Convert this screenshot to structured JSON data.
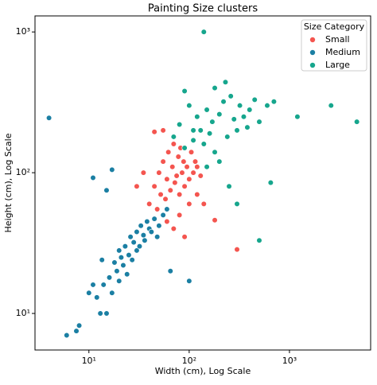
{
  "chart_data": {
    "type": "scatter",
    "title": "Painting Size clusters",
    "x_label": "Width (cm), Log Scale",
    "y_label": "Height (cm), Log Scale",
    "x_scale": "log",
    "y_scale": "log",
    "xlim": [
      2.9,
      6450
    ],
    "ylim": [
      5.5,
      1300
    ],
    "xticks": [
      {
        "value": 10,
        "label": "10¹"
      },
      {
        "value": 100,
        "label": "10²"
      },
      {
        "value": 1000,
        "label": "10³"
      }
    ],
    "yticks": [
      {
        "value": 10,
        "label": "10¹"
      },
      {
        "value": 100,
        "label": "10²"
      },
      {
        "value": 1000,
        "label": "10³"
      }
    ],
    "legend_title": "Size Category",
    "legend_position": "upper right",
    "series": [
      {
        "name": "Small",
        "color": "#f4554f",
        "x": [
          40,
          45,
          48,
          50,
          52,
          55,
          58,
          60,
          62,
          65,
          68,
          70,
          72,
          75,
          78,
          80,
          82,
          85,
          88,
          90,
          95,
          100,
          105,
          110,
          115,
          120,
          130,
          55,
          60,
          70,
          80,
          90,
          100,
          120,
          140,
          180,
          300,
          30,
          35,
          45
        ],
        "values": [
          60,
          80,
          55,
          100,
          70,
          120,
          65,
          90,
          140,
          75,
          110,
          160,
          85,
          95,
          130,
          70,
          150,
          100,
          120,
          80,
          110,
          90,
          140,
          100,
          120,
          110,
          95,
          200,
          45,
          40,
          50,
          35,
          60,
          70,
          60,
          46,
          28.5,
          80,
          100,
          195
        ]
      },
      {
        "name": "Medium",
        "color": "#1b7fa3",
        "x": [
          6,
          7.5,
          8,
          10,
          11,
          12,
          13,
          13.5,
          14,
          15,
          16,
          17,
          18,
          19,
          20,
          20,
          21,
          22,
          23,
          24,
          25,
          26,
          27,
          28,
          30,
          30,
          32,
          33,
          35,
          36,
          38,
          40,
          42,
          45,
          48,
          50,
          55,
          60,
          4,
          11,
          15,
          17,
          100,
          65
        ],
        "values": [
          7,
          7.5,
          8.2,
          14,
          16,
          13,
          10,
          24,
          16,
          10,
          18,
          14,
          23,
          20,
          17,
          28,
          25,
          22,
          30,
          19,
          26,
          35,
          24,
          32,
          28,
          38,
          30,
          42,
          36,
          33,
          45,
          40,
          38,
          47,
          35,
          42,
          50,
          55,
          245,
          92,
          75,
          105,
          17,
          20
        ]
      },
      {
        "name": "Large",
        "color": "#16a68d",
        "x": [
          70,
          80,
          90,
          100,
          110,
          120,
          130,
          140,
          150,
          160,
          170,
          180,
          200,
          220,
          240,
          260,
          280,
          300,
          320,
          350,
          380,
          400,
          450,
          500,
          600,
          700,
          140,
          2600,
          4700,
          1200,
          650,
          500,
          300,
          250,
          200,
          150,
          110,
          230,
          180,
          90
        ],
        "values": [
          180,
          220,
          150,
          300,
          170,
          250,
          200,
          160,
          280,
          190,
          230,
          140,
          260,
          320,
          180,
          350,
          240,
          200,
          300,
          250,
          210,
          280,
          330,
          230,
          300,
          320,
          1000,
          300,
          230,
          250,
          85,
          33,
          60,
          80,
          120,
          110,
          200,
          440,
          400,
          380
        ]
      }
    ]
  }
}
